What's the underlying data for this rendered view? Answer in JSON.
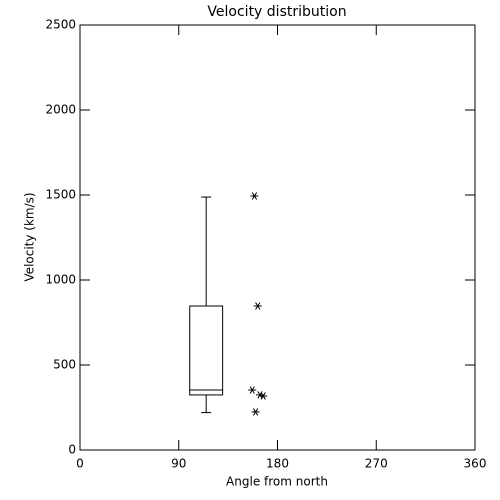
{
  "chart_data": {
    "type": "box",
    "title": "Velocity distribution",
    "xlabel": "Angle from north",
    "ylabel": "Velocity (km/s)",
    "xlim": [
      0,
      360
    ],
    "xticks": [
      0,
      90,
      180,
      270,
      360
    ],
    "ylim": [
      0,
      2500
    ],
    "yticks": [
      0,
      500,
      1000,
      1500,
      2000,
      2500
    ],
    "boxes": [
      {
        "position": 115,
        "width": 30,
        "whisker_low": 220,
        "q1": 324,
        "median": 353,
        "q3": 847,
        "whisker_high": 1488
      }
    ],
    "outliers": {
      "x": [
        159,
        162,
        157,
        164,
        167,
        160
      ],
      "y": [
        1494,
        847,
        353,
        324,
        318,
        224
      ]
    }
  }
}
